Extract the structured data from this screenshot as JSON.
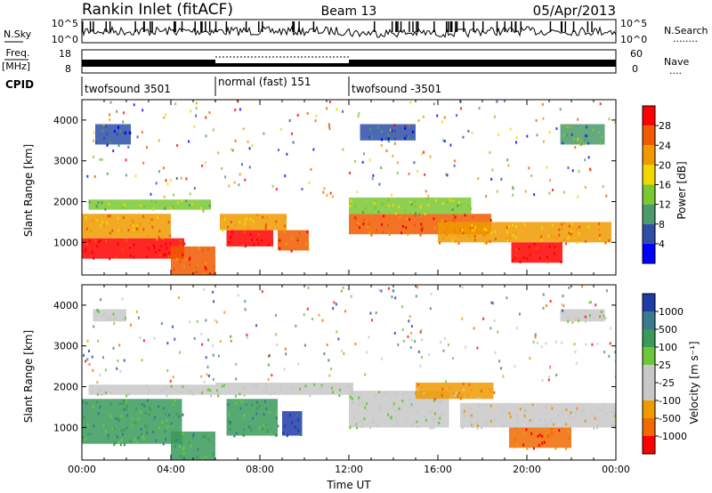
{
  "header": {
    "station": "Rankin Inlet (fitACF)",
    "beam": "Beam 13",
    "date": "05/Apr/2013"
  },
  "noise_panel": {
    "left_label": "N.Sky",
    "right_label": "N.Search",
    "right_legend": "........",
    "left_ticks": [
      "10^5",
      "10^0"
    ],
    "right_ticks": [
      "10^5",
      "10^0"
    ]
  },
  "freq_panel": {
    "left_label_1": "Freq.",
    "left_label_2": "[MHz]",
    "right_label": "Nave",
    "right_legend": "....",
    "left_ticks": [
      "18",
      "8"
    ],
    "right_ticks": [
      "60",
      "0"
    ]
  },
  "cpid": {
    "label": "CPID",
    "segments": [
      {
        "text": "twofsound 3501",
        "start_hour": 0,
        "end_hour": 6
      },
      {
        "text": "normal (fast) 151",
        "start_hour": 6,
        "end_hour": 12
      },
      {
        "text": "twofsound -3501",
        "start_hour": 12,
        "end_hour": 24
      }
    ]
  },
  "colors": {
    "power": [
      "#0000ff",
      "#2e4ea8",
      "#4a9a6a",
      "#7ac832",
      "#f0d800",
      "#f09a00",
      "#f05a00",
      "#ff0000"
    ],
    "velocity": [
      "#1e3ca8",
      "#3a7a8a",
      "#3a9a5a",
      "#6ac83a",
      "#c8c8c8",
      "#c8c8c8",
      "#f09a00",
      "#f06a00",
      "#ff0000"
    ]
  },
  "chart_data": [
    {
      "type": "heatmap",
      "name_key": "power",
      "xlabel": "",
      "ylabel": "Slant Range [km]",
      "xlim": [
        0,
        24
      ],
      "ylim": [
        200,
        4500
      ],
      "y_ticks": [
        1000,
        2000,
        3000,
        4000
      ],
      "colorbar": {
        "label": "Power [dB]",
        "ticks": [
          "4",
          "8",
          "12",
          "16",
          "20",
          "24",
          "28"
        ]
      },
      "bands": [
        {
          "x0": 0.0,
          "x1": 4.6,
          "y0": 600,
          "y1": 1100,
          "level": 7
        },
        {
          "x0": 0.0,
          "x1": 4.0,
          "y0": 1100,
          "y1": 1700,
          "level": 5
        },
        {
          "x0": 0.3,
          "x1": 5.8,
          "y0": 1800,
          "y1": 2050,
          "level": 3
        },
        {
          "x0": 4.0,
          "x1": 6.0,
          "y0": 200,
          "y1": 900,
          "level": 6
        },
        {
          "x0": 6.2,
          "x1": 9.2,
          "y0": 1300,
          "y1": 1700,
          "level": 5
        },
        {
          "x0": 6.5,
          "x1": 8.6,
          "y0": 900,
          "y1": 1300,
          "level": 7
        },
        {
          "x0": 8.8,
          "x1": 10.2,
          "y0": 800,
          "y1": 1300,
          "level": 6
        },
        {
          "x0": 12.0,
          "x1": 18.4,
          "y0": 1200,
          "y1": 1700,
          "level": 6
        },
        {
          "x0": 12.0,
          "x1": 17.5,
          "y0": 1700,
          "y1": 2100,
          "level": 3
        },
        {
          "x0": 16.0,
          "x1": 23.8,
          "y0": 1000,
          "y1": 1500,
          "level": 5
        },
        {
          "x0": 19.3,
          "x1": 21.6,
          "y0": 500,
          "y1": 1000,
          "level": 7
        },
        {
          "x0": 0.6,
          "x1": 2.2,
          "y0": 3400,
          "y1": 3900,
          "level": 1
        },
        {
          "x0": 12.5,
          "x1": 15.0,
          "y0": 3500,
          "y1": 3900,
          "level": 1
        },
        {
          "x0": 21.5,
          "x1": 23.5,
          "y0": 3400,
          "y1": 3900,
          "level": 2
        }
      ]
    },
    {
      "type": "heatmap",
      "name_key": "velocity",
      "xlabel": "Time UT",
      "ylabel": "Slant Range [km]",
      "xlim": [
        0,
        24
      ],
      "ylim": [
        200,
        4500
      ],
      "y_ticks": [
        1000,
        2000,
        3000,
        4000
      ],
      "x_ticks": [
        "00:00",
        "04:00",
        "08:00",
        "12:00",
        "16:00",
        "20:00",
        "00:00"
      ],
      "colorbar": {
        "label": "Velocity [m s⁻¹]",
        "ticks": [
          "1000",
          "500",
          "100",
          "25",
          "-25",
          "-100",
          "-500",
          "-1000"
        ]
      },
      "bands": [
        {
          "x0": 0.0,
          "x1": 4.5,
          "y0": 600,
          "y1": 1700,
          "level": 2
        },
        {
          "x0": 0.3,
          "x1": 6.0,
          "y0": 1800,
          "y1": 2050,
          "level": 4
        },
        {
          "x0": 6.0,
          "x1": 12.2,
          "y0": 1800,
          "y1": 2100,
          "level": 4
        },
        {
          "x0": 6.5,
          "x1": 8.8,
          "y0": 800,
          "y1": 1700,
          "level": 2
        },
        {
          "x0": 9.0,
          "x1": 9.9,
          "y0": 800,
          "y1": 1400,
          "level": 0
        },
        {
          "x0": 4.0,
          "x1": 6.0,
          "y0": 200,
          "y1": 900,
          "level": 2
        },
        {
          "x0": 12.0,
          "x1": 16.5,
          "y0": 1000,
          "y1": 1900,
          "level": 4
        },
        {
          "x0": 15.0,
          "x1": 18.5,
          "y0": 1700,
          "y1": 2100,
          "level": 6
        },
        {
          "x0": 17.0,
          "x1": 24.0,
          "y0": 1000,
          "y1": 1600,
          "level": 5
        },
        {
          "x0": 19.2,
          "x1": 22.0,
          "y0": 500,
          "y1": 1000,
          "level": 7
        },
        {
          "x0": 0.5,
          "x1": 2.0,
          "y0": 3600,
          "y1": 3900,
          "level": 4
        },
        {
          "x0": 21.5,
          "x1": 23.5,
          "y0": 3600,
          "y1": 3900,
          "level": 4
        }
      ]
    }
  ]
}
